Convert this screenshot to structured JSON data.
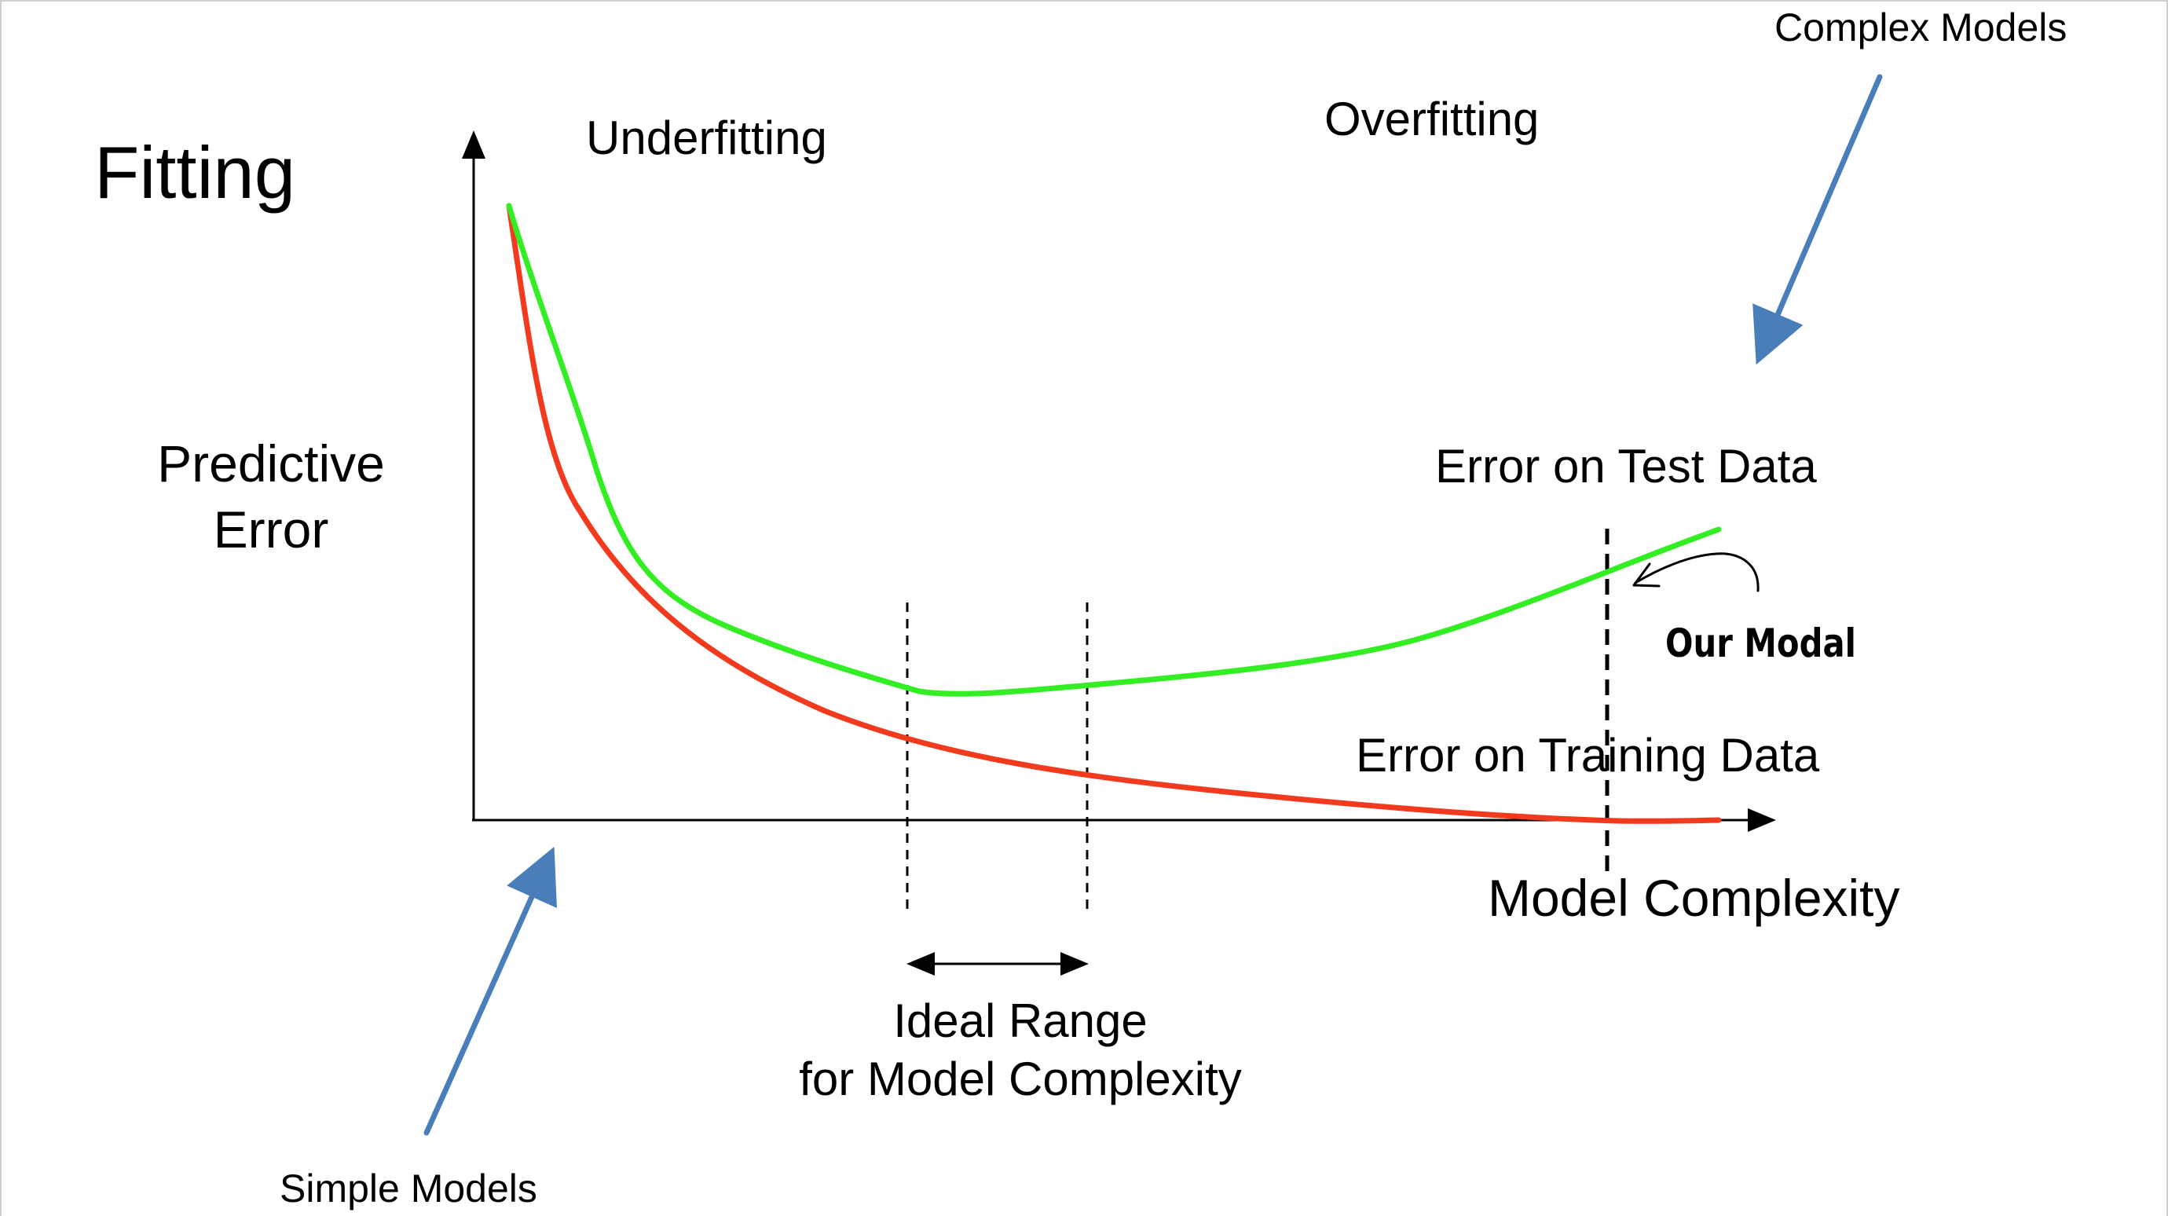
{
  "slide": {
    "title": "Fitting",
    "labels": {
      "y_axis_line1": "Predictive",
      "y_axis_line2": "Error",
      "x_axis": "Model Complexity",
      "underfitting": "Underfitting",
      "overfitting": "Overfitting",
      "test_curve": "Error on Test Data",
      "training_curve": "Error on Training Data",
      "ideal_range_line1": "Ideal Range",
      "ideal_range_line2": "for Model Complexity",
      "simple_models": "Simple Models",
      "complex_models": "Complex Models",
      "our_model": "Our Modal"
    },
    "colors": {
      "test_curve": "#33ee22",
      "training_curve": "#f23a1e",
      "our_model_label": "#1144dd",
      "pointer_arrows": "#4a7ebb",
      "axes": "#000000"
    }
  }
}
